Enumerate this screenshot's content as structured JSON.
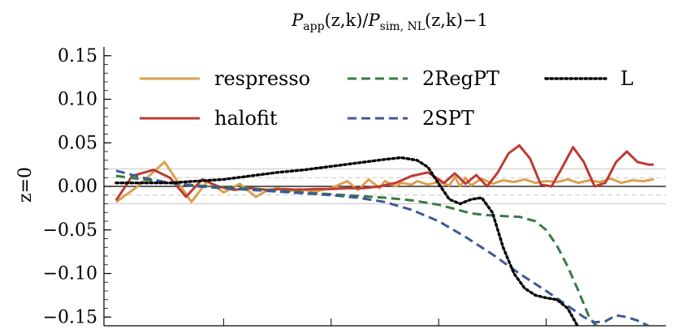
{
  "chart_data": {
    "type": "line",
    "title": {
      "P1": "P",
      "sub1": "app",
      "mid": "(z,k)/",
      "P2": "P",
      "sub2": "sim, NL",
      "tail": "(z,k)−1"
    },
    "ylabel": "z=0",
    "xlabel": "",
    "ylim": [
      -0.16,
      0.16
    ],
    "yticks": [
      0.15,
      0.1,
      0.05,
      0.0,
      -0.05,
      -0.1,
      -0.15
    ],
    "ytick_labels": [
      "0.15",
      "0.10",
      "0.05",
      "0.00",
      "−0.05",
      "−0.10",
      "−0.15"
    ],
    "xlim": [
      0,
      1
    ],
    "grid": false,
    "legend_position": "top",
    "reference_lines": {
      "solid_grey": [
        0.02,
        -0.02
      ],
      "dashed_grey": [
        0.01,
        -0.01
      ]
    },
    "series": [
      {
        "name": "respresso",
        "color": "#dda04f",
        "dash": "solid",
        "x": [
          0.0,
          0.04,
          0.09,
          0.14,
          0.17,
          0.2,
          0.23,
          0.26,
          0.28,
          0.3,
          0.32,
          0.34,
          0.37,
          0.4,
          0.43,
          0.45,
          0.47,
          0.49,
          0.5,
          0.52,
          0.53,
          0.55,
          0.56,
          0.58,
          0.6,
          0.62,
          0.63,
          0.64,
          0.65,
          0.66,
          0.68,
          0.7,
          0.72,
          0.74,
          0.76,
          0.78,
          0.8,
          0.82,
          0.84,
          0.86,
          0.88,
          0.9,
          0.92,
          0.94,
          0.96,
          0.98,
          1.0
        ],
        "y": [
          -0.018,
          0.0,
          0.028,
          -0.018,
          0.006,
          -0.007,
          0.003,
          -0.012,
          -0.005,
          -0.002,
          -0.006,
          -0.003,
          -0.006,
          -0.002,
          0.006,
          -0.004,
          0.008,
          -0.002,
          0.006,
          0.0,
          0.004,
          0.002,
          0.006,
          0.002,
          0.005,
          0.001,
          0.011,
          0.0,
          0.01,
          0.001,
          0.009,
          0.003,
          0.007,
          0.005,
          0.008,
          0.004,
          0.006,
          0.005,
          0.008,
          0.004,
          0.007,
          0.005,
          0.009,
          0.004,
          0.007,
          0.006,
          0.008
        ]
      },
      {
        "name": "halofit",
        "color": "#bc3b34",
        "dash": "solid",
        "x": [
          0.0,
          0.03,
          0.07,
          0.1,
          0.13,
          0.16,
          0.19,
          0.22,
          0.25,
          0.28,
          0.31,
          0.34,
          0.37,
          0.4,
          0.43,
          0.46,
          0.49,
          0.52,
          0.55,
          0.58,
          0.61,
          0.63,
          0.65,
          0.67,
          0.69,
          0.71,
          0.73,
          0.75,
          0.77,
          0.79,
          0.81,
          0.83,
          0.85,
          0.87,
          0.89,
          0.91,
          0.93,
          0.95,
          0.97,
          0.99,
          1.0
        ],
        "y": [
          -0.016,
          0.012,
          0.019,
          0.01,
          -0.012,
          0.008,
          0.0,
          -0.004,
          -0.002,
          -0.004,
          -0.003,
          -0.004,
          -0.003,
          -0.003,
          -0.002,
          -0.002,
          0.0,
          0.004,
          0.012,
          0.016,
          0.004,
          0.015,
          0.003,
          0.013,
          0.0,
          0.016,
          0.038,
          0.047,
          0.032,
          0.002,
          0.0,
          0.022,
          0.045,
          0.028,
          0.0,
          0.004,
          0.028,
          0.04,
          0.028,
          0.025,
          0.025
        ]
      },
      {
        "name": "2RegPT",
        "color": "#3a7a46",
        "dash": "dashed",
        "x": [
          0.0,
          0.05,
          0.1,
          0.15,
          0.2,
          0.25,
          0.3,
          0.35,
          0.4,
          0.45,
          0.5,
          0.55,
          0.6,
          0.63,
          0.66,
          0.69,
          0.72,
          0.75,
          0.78,
          0.8,
          0.82,
          0.84,
          0.86,
          0.88,
          0.89,
          0.9
        ],
        "y": [
          0.012,
          0.008,
          0.004,
          0.001,
          -0.001,
          -0.003,
          -0.005,
          -0.007,
          -0.009,
          -0.011,
          -0.013,
          -0.016,
          -0.021,
          -0.026,
          -0.031,
          -0.033,
          -0.034,
          -0.035,
          -0.04,
          -0.05,
          -0.068,
          -0.092,
          -0.12,
          -0.15,
          -0.158,
          -0.162
        ]
      },
      {
        "name": "2SPT",
        "color": "#3d5a96",
        "dash": "dashed",
        "x": [
          0.0,
          0.05,
          0.1,
          0.15,
          0.2,
          0.25,
          0.3,
          0.35,
          0.4,
          0.45,
          0.5,
          0.55,
          0.6,
          0.65,
          0.7,
          0.75,
          0.8,
          0.84,
          0.87,
          0.89,
          0.91,
          0.93,
          0.95,
          0.97,
          0.99
        ],
        "y": [
          0.018,
          0.01,
          0.004,
          0.0,
          -0.002,
          -0.004,
          -0.006,
          -0.008,
          -0.01,
          -0.013,
          -0.018,
          -0.027,
          -0.04,
          -0.058,
          -0.078,
          -0.1,
          -0.12,
          -0.137,
          -0.15,
          -0.156,
          -0.155,
          -0.148,
          -0.15,
          -0.154,
          -0.16
        ]
      },
      {
        "name": "L",
        "color": "#000000",
        "dash": "dotted",
        "x": [
          0.0,
          0.05,
          0.1,
          0.15,
          0.2,
          0.25,
          0.3,
          0.35,
          0.4,
          0.45,
          0.5,
          0.53,
          0.56,
          0.58,
          0.6,
          0.62,
          0.64,
          0.66,
          0.68,
          0.7,
          0.72,
          0.74,
          0.76,
          0.78,
          0.8,
          0.82,
          0.84,
          0.86
        ],
        "y": [
          0.004,
          0.004,
          0.004,
          0.006,
          0.008,
          0.012,
          0.016,
          0.019,
          0.023,
          0.027,
          0.031,
          0.033,
          0.03,
          0.022,
          0.003,
          -0.015,
          -0.02,
          -0.015,
          -0.013,
          -0.03,
          -0.07,
          -0.1,
          -0.117,
          -0.125,
          -0.128,
          -0.13,
          -0.14,
          -0.162
        ]
      }
    ]
  }
}
